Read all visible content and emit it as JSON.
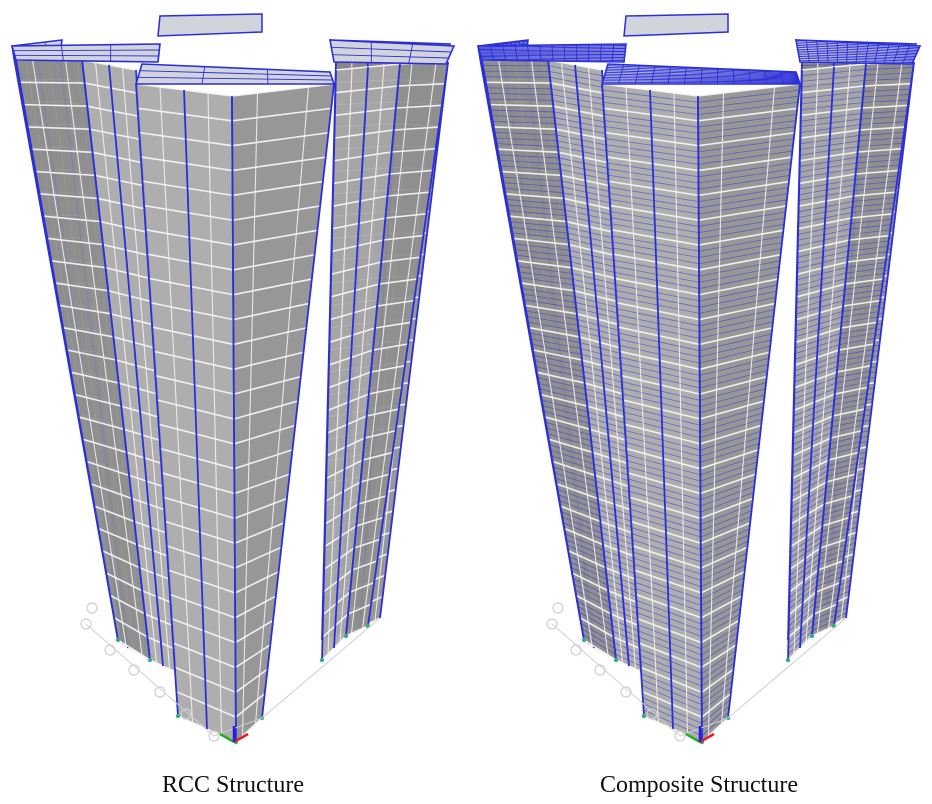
{
  "figure": {
    "left_model": {
      "caption": "RCC Structure",
      "floor_divisions": 1
    },
    "right_model": {
      "caption": "Composite Structure",
      "floor_divisions": 4
    }
  },
  "colors": {
    "background": "#ffffff",
    "face_front": "#a7a7a7",
    "face_side": "#8e8e8e",
    "face_recess": "#7d7d7d",
    "roof_fill": "#d2d4dc",
    "column_blue": "#2b2fd9",
    "beam_white": "#f4f4f4",
    "support_outline": "#cfcfcf",
    "node_teal": "#3aa88c",
    "axis_red": "#e02020",
    "axis_green": "#20b020",
    "axis_blue": "#2020e0"
  }
}
